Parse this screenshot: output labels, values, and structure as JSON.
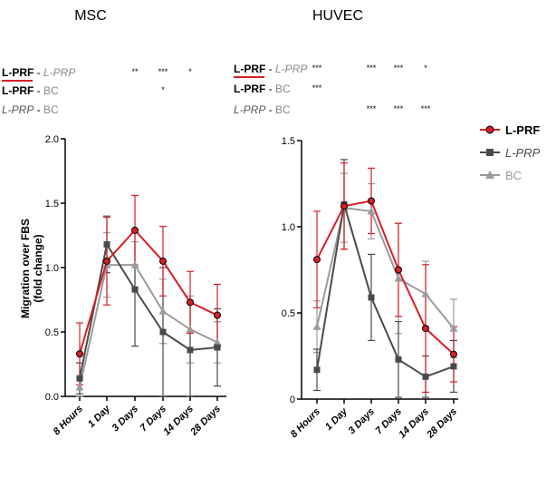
{
  "chart_data": [
    {
      "type": "line",
      "title": "MSC",
      "xlabel": "",
      "ylabel": "Migration over FBS (fold change)",
      "categories": [
        "8 Hours",
        "1 Day",
        "3 Days",
        "7 Days",
        "14 Days",
        "28 Days"
      ],
      "ylim": [
        0,
        2.0
      ],
      "yticks": [
        "0.0",
        "0.5",
        "1.0",
        "1.5",
        "2.0"
      ],
      "series": [
        {
          "name": "L-PRF",
          "color": "#d62027",
          "marker": "circle",
          "values": [
            0.33,
            1.05,
            1.29,
            1.05,
            0.73,
            0.63
          ],
          "err": [
            0.24,
            0.34,
            0.27,
            0.27,
            0.24,
            0.24
          ]
        },
        {
          "name": "L-PRP",
          "color": "#4a4a4a",
          "marker": "square",
          "values": [
            0.14,
            1.18,
            0.83,
            0.5,
            0.36,
            0.38
          ],
          "err": [
            0.12,
            0.22,
            0.44,
            0.5,
            0.36,
            0.3
          ]
        },
        {
          "name": "BC",
          "color": "#9b9b9b",
          "marker": "triangle",
          "values": [
            0.07,
            1.02,
            1.02,
            0.66,
            0.52,
            0.42
          ],
          "err": [
            0.07,
            0.25,
            0.18,
            0.25,
            0.26,
            0.16
          ]
        }
      ],
      "significance": [
        {
          "label_a": "L-PRF",
          "label_b": "L-PRP",
          "marks": [
            "",
            "",
            "**",
            "***",
            "*",
            ""
          ]
        },
        {
          "label_a": "L-PRF",
          "label_b": "BC",
          "marks": [
            "",
            "",
            "",
            "*",
            "",
            ""
          ]
        },
        {
          "label_a": "L-PRP",
          "label_b": "BC",
          "marks": [
            "",
            "",
            "",
            "",
            "",
            ""
          ]
        }
      ]
    },
    {
      "type": "line",
      "title": "HUVEC",
      "xlabel": "",
      "ylabel": "",
      "categories": [
        "8 Hours",
        "1 Day",
        "3 Days",
        "7 Days",
        "14 Days",
        "28 Days"
      ],
      "ylim": [
        0,
        1.5
      ],
      "yticks": [
        "0",
        "0.5",
        "1.0",
        "1.5"
      ],
      "series": [
        {
          "name": "L-PRF",
          "color": "#d62027",
          "marker": "circle",
          "values": [
            0.81,
            1.12,
            1.15,
            0.75,
            0.41,
            0.26
          ],
          "err": [
            0.28,
            0.25,
            0.19,
            0.27,
            0.37,
            0.16
          ]
        },
        {
          "name": "L-PRP",
          "color": "#4a4a4a",
          "marker": "square",
          "values": [
            0.17,
            1.13,
            0.59,
            0.23,
            0.13,
            0.19
          ],
          "err": [
            0.12,
            0.26,
            0.25,
            0.22,
            0.12,
            0.15
          ]
        },
        {
          "name": "BC",
          "color": "#9b9b9b",
          "marker": "triangle",
          "values": [
            0.42,
            1.11,
            1.09,
            0.7,
            0.61,
            0.41
          ],
          "err": [
            0.15,
            0.2,
            0.16,
            0.32,
            0.19,
            0.17
          ]
        }
      ],
      "significance": [
        {
          "label_a": "L-PRF",
          "label_b": "L-PRP",
          "marks": [
            "***",
            "",
            "***",
            "***",
            "*",
            ""
          ]
        },
        {
          "label_a": "L-PRF",
          "label_b": "BC",
          "marks": [
            "***",
            "",
            "",
            "",
            "",
            ""
          ]
        },
        {
          "label_a": "L-PRP",
          "label_b": "BC",
          "marks": [
            "",
            "",
            "***",
            "***",
            "***",
            ""
          ]
        }
      ]
    }
  ],
  "legend": {
    "placement": "right",
    "entries": [
      {
        "name": "L-PRF",
        "color": "#d62027",
        "marker": "circle",
        "italic": false,
        "bold": true
      },
      {
        "name": "L-PRP",
        "color": "#4a4a4a",
        "marker": "square",
        "italic": true,
        "bold": false
      },
      {
        "name": "BC",
        "color": "#9b9b9b",
        "marker": "triangle",
        "italic": false,
        "bold": false
      }
    ]
  }
}
